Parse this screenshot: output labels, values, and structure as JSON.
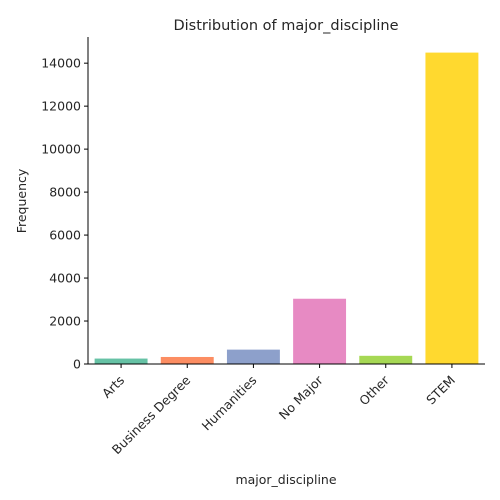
{
  "chart_data": {
    "type": "bar",
    "title": "Distribution of major_discipline",
    "xlabel": "major_discipline",
    "ylabel": "Frequency",
    "categories": [
      "Arts",
      "Business Degree",
      "Humanities",
      "No Major",
      "Other",
      "STEM"
    ],
    "values": [
      253,
      327,
      669,
      3037,
      381,
      14492
    ],
    "colors": [
      "#66c2a5",
      "#fc8d62",
      "#8da0cb",
      "#e78ac3",
      "#a6d854",
      "#ffd92f"
    ],
    "ylim": [
      0,
      15218
    ],
    "yticks": [
      0,
      2000,
      4000,
      6000,
      8000,
      10000,
      12000,
      14000
    ],
    "ytick_labels": [
      "0",
      "2000",
      "4000",
      "6000",
      "8000",
      "10000",
      "12000",
      "14000"
    ],
    "grid": false,
    "legend": "none",
    "spines": "left-bottom"
  }
}
